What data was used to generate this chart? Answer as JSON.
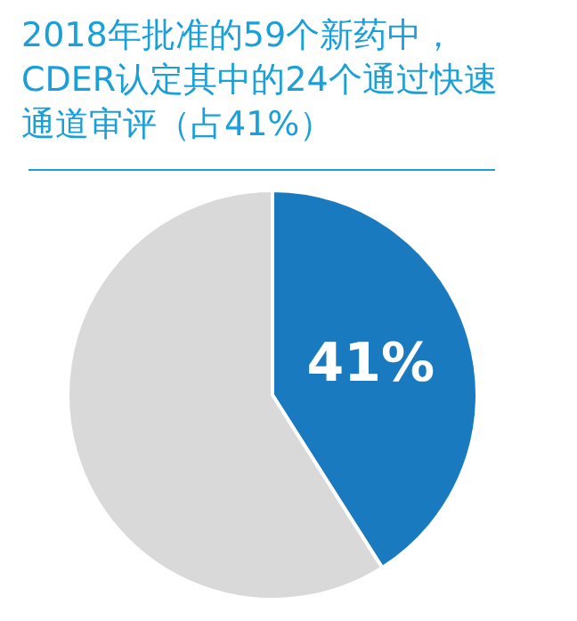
{
  "chart_data": {
    "type": "pie",
    "title": "2018年批准的59个新药中，CDER认定其中的24个通过快速通道审评（占41%）",
    "categories": [
      null,
      null
    ],
    "values": [
      41,
      59
    ],
    "colors": [
      "#1a7abf",
      "#d9d9d9"
    ],
    "value_labels": [
      "41%",
      null
    ],
    "legend": false
  }
}
